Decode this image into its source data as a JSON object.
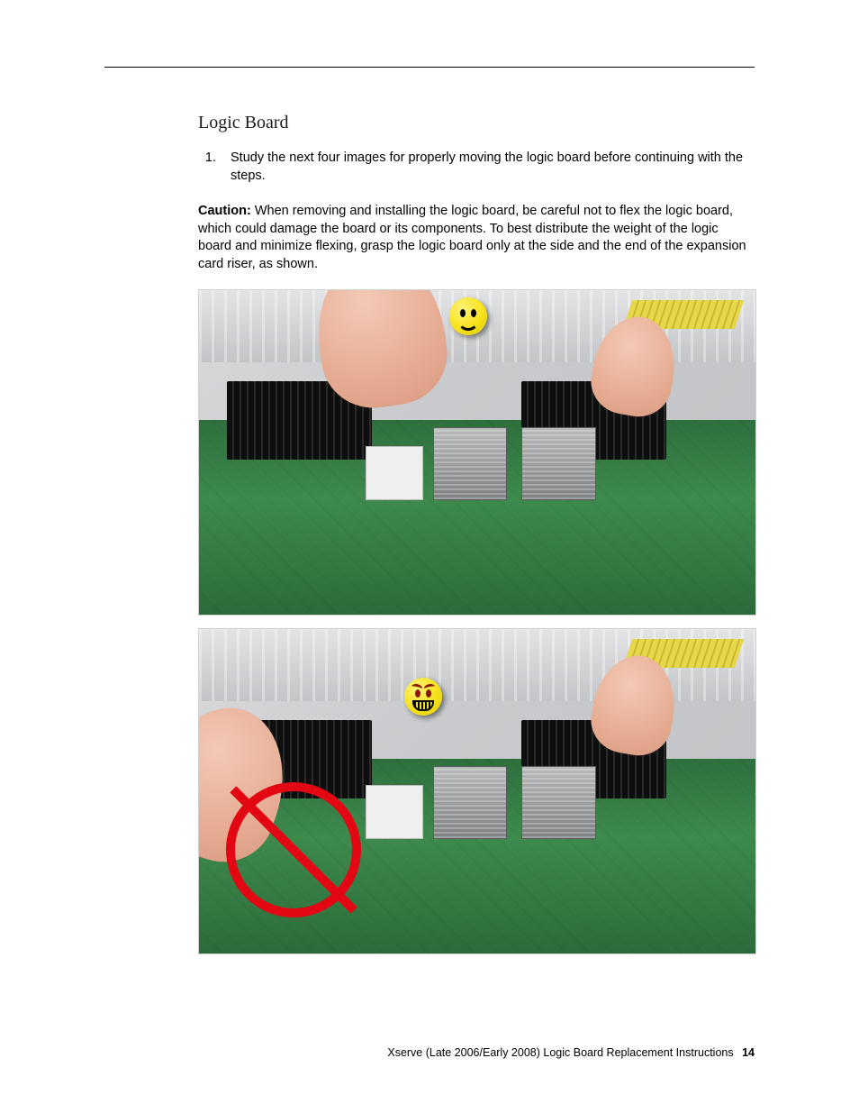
{
  "section_title": "Logic Board",
  "step": {
    "number": "1.",
    "text": "Study the next four images for properly moving the logic board before continuing with the steps."
  },
  "caution": {
    "label": "Caution:",
    "text": " When removing and installing the logic board, be careful not to flex the logic board, which could damage the board or its components. To best distribute the weight of the logic board and minimize flexing, grasp the logic board only at the side and the end of the expansion card riser, as shown."
  },
  "figures": [
    {
      "indicator": "happy",
      "indicator_name": "correct-handling-icon",
      "has_prohibition": false,
      "colors": {
        "pcb": "#3e8a4d",
        "chassis": "#c9cbce",
        "skin": "#e6ac93",
        "face": "#f6e21a"
      }
    },
    {
      "indicator": "worried",
      "indicator_name": "incorrect-handling-icon",
      "has_prohibition": true,
      "colors": {
        "pcb": "#3e8a4d",
        "chassis": "#c9cbce",
        "skin": "#e6ac93",
        "face": "#f6e21a",
        "prohibition": "#e30613"
      }
    }
  ],
  "footer": {
    "text": "Xserve (Late 2006/Early 2008) Logic Board Replacement Instructions",
    "page_number": "14"
  }
}
